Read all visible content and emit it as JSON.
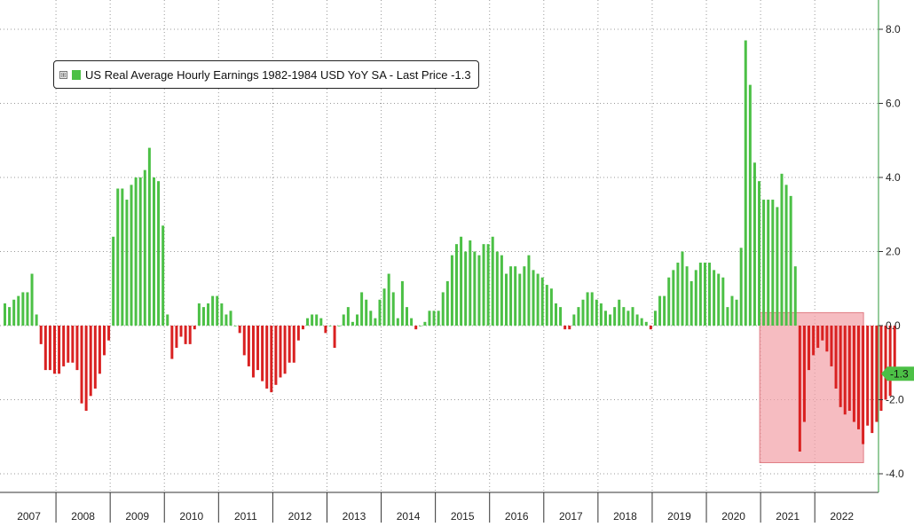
{
  "legend": {
    "expander_glyph": "⊞",
    "text": "US Real Average Hourly Earnings 1982-1984 USD YoY SA - Last Price -1.3"
  },
  "last_price_label": "-1.3",
  "colors": {
    "positive": "#4cc046",
    "negative": "#d92121",
    "highlight_fill": "#f2a0a6",
    "grid": "#999999",
    "last_price_tag": "#4cc046"
  },
  "chart_data": {
    "type": "bar",
    "title": "US Real Average Hourly Earnings 1982-1984 USD YoY SA",
    "last_price": -1.3,
    "ylim": [
      -4.4,
      8.8
    ],
    "y_ticks": [
      "8.0",
      "6.0",
      "4.0",
      "2.0",
      "0.0",
      "-2.0",
      "-4.0"
    ],
    "y_tick_values": [
      8,
      6,
      4,
      2,
      0,
      -2,
      -4
    ],
    "x_tick_labels": [
      "2007",
      "2008",
      "2009",
      "2010",
      "2011",
      "2012",
      "2013",
      "2014",
      "2015",
      "2016",
      "2017",
      "2018",
      "2019",
      "2020",
      "2021",
      "2022"
    ],
    "grid": true,
    "legend_position": "top-left",
    "highlight_region": {
      "x_from": "2021-01",
      "x_to": "2022-10",
      "y_from": -3.7,
      "y_to": 0.35
    },
    "start_month": "2007-01",
    "values": [
      0.6,
      0.5,
      0.7,
      0.8,
      0.9,
      0.9,
      1.4,
      0.3,
      -0.5,
      -1.2,
      -1.2,
      -1.3,
      -1.3,
      -1.1,
      -1.0,
      -1.0,
      -1.2,
      -2.1,
      -2.3,
      -1.9,
      -1.7,
      -1.3,
      -0.8,
      -0.4,
      2.4,
      3.7,
      3.7,
      3.4,
      3.8,
      4.0,
      4.0,
      4.2,
      4.8,
      4.0,
      3.9,
      2.7,
      0.3,
      -0.9,
      -0.6,
      -0.3,
      -0.5,
      -0.5,
      -0.1,
      0.6,
      0.5,
      0.6,
      0.8,
      0.8,
      0.6,
      0.3,
      0.4,
      0.0,
      -0.2,
      -0.8,
      -1.1,
      -1.4,
      -1.2,
      -1.5,
      -1.7,
      -1.8,
      -1.6,
      -1.4,
      -1.3,
      -1.0,
      -1.0,
      -0.4,
      -0.1,
      0.2,
      0.3,
      0.3,
      0.2,
      -0.2,
      0.0,
      -0.6,
      0.0,
      0.3,
      0.5,
      0.1,
      0.3,
      0.9,
      0.7,
      0.4,
      0.2,
      0.7,
      1.0,
      1.4,
      0.9,
      0.2,
      1.2,
      0.5,
      0.2,
      -0.1,
      0.0,
      0.1,
      0.4,
      0.4,
      0.4,
      0.9,
      1.2,
      1.9,
      2.2,
      2.4,
      2.0,
      2.3,
      2.0,
      1.9,
      2.2,
      2.2,
      2.4,
      2.0,
      1.9,
      1.4,
      1.6,
      1.6,
      1.4,
      1.6,
      1.9,
      1.5,
      1.4,
      1.3,
      1.1,
      1.0,
      0.6,
      0.5,
      -0.1,
      -0.1,
      0.3,
      0.5,
      0.7,
      0.9,
      0.9,
      0.7,
      0.6,
      0.4,
      0.3,
      0.5,
      0.7,
      0.5,
      0.4,
      0.5,
      0.3,
      0.2,
      0.1,
      -0.1,
      0.4,
      0.8,
      0.8,
      1.3,
      1.5,
      1.7,
      2.0,
      1.6,
      1.2,
      1.5,
      1.7,
      1.7,
      1.7,
      1.5,
      1.4,
      1.3,
      0.5,
      0.8,
      0.7,
      2.1,
      7.7,
      6.5,
      4.4,
      3.9,
      3.4,
      3.4,
      3.4,
      3.2,
      4.1,
      3.8,
      3.5,
      1.6,
      -3.4,
      -2.6,
      -1.2,
      -0.8,
      -0.6,
      -0.4,
      -0.7,
      -1.1,
      -1.7,
      -2.2,
      -2.4,
      -2.3,
      -2.6,
      -2.8,
      -3.2,
      -2.7,
      -2.9,
      -2.6,
      -2.3,
      -2.0,
      -1.9,
      -1.3
    ]
  }
}
